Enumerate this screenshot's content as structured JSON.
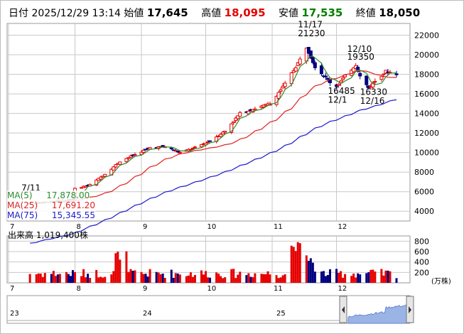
{
  "header": {
    "date_label": "日付",
    "datetime": "2025/12/29 13:14",
    "open_label": "始値",
    "open": "17,645",
    "high_label": "高値",
    "high": "18,095",
    "low_label": "安値",
    "low": "17,535",
    "close_label": "終値",
    "close": "18,050"
  },
  "ma_legend": [
    {
      "label": "MA(5)",
      "value": "17,878.00",
      "color": "#2e8b2e"
    },
    {
      "label": "MA(25)",
      "value": "17,691.20",
      "color": "#e02020"
    },
    {
      "label": "MA(75)",
      "value": "15,345.55",
      "color": "#1a1acc"
    }
  ],
  "volume_label": "出来高",
  "volume_value": "1,019,400株",
  "volume_unit": "(万株)",
  "colors": {
    "up": "#e60000",
    "down": "#000080",
    "ma5": "#2e8b2e",
    "ma25": "#e02020",
    "ma75": "#1a1acc",
    "grid": "#c8c8c8",
    "nav_fill": "#9bb4e6"
  },
  "annotations": [
    {
      "label": "7/11",
      "x": "2025-07-11",
      "y": 6100
    },
    {
      "label": "11/17",
      "x": "2025-11-17",
      "y": 22800
    },
    {
      "label": "21230",
      "x": "2025-11-17",
      "y": 21900
    },
    {
      "label": "12/10",
      "x": "2025-12-10",
      "y": 20300
    },
    {
      "label": "19350",
      "x": "2025-12-10",
      "y": 19500
    },
    {
      "label": "16485",
      "x": "2025-12-01",
      "y": 16000
    },
    {
      "label": "12/1",
      "x": "2025-12-01",
      "y": 15100
    },
    {
      "label": "16330",
      "x": "2025-12-16",
      "y": 15900
    },
    {
      "label": "12/16",
      "x": "2025-12-16",
      "y": 15000
    }
  ],
  "chart_data": [
    {
      "type": "candlestick",
      "title": "",
      "x_tick_labels": [
        "7",
        "8",
        "9",
        "10",
        "11",
        "12"
      ],
      "y_ticks": [
        4000,
        6000,
        8000,
        10000,
        12000,
        14000,
        16000,
        18000,
        20000,
        22000
      ],
      "ylim": [
        3000,
        23200
      ],
      "grid": true,
      "legend_position": "top-left",
      "series": [
        {
          "name": "MA(5)",
          "values_approx": "follows close"
        },
        {
          "name": "MA(25)",
          "values_approx": "follows close"
        },
        {
          "name": "MA(75)",
          "values_approx": "follows close"
        }
      ],
      "x_dates_start": "2025-07-11",
      "close_keypoints": [
        [
          "2025-07-11",
          4800
        ],
        [
          "2025-07-31",
          5200
        ],
        [
          "2025-08-01",
          6300
        ],
        [
          "2025-08-08",
          6700
        ],
        [
          "2025-08-15",
          7800
        ],
        [
          "2025-08-22",
          9100
        ],
        [
          "2025-08-29",
          9800
        ],
        [
          "2025-09-05",
          10500
        ],
        [
          "2025-09-12",
          10600
        ],
        [
          "2025-09-19",
          10000
        ],
        [
          "2025-09-26",
          10500
        ],
        [
          "2025-10-03",
          11200
        ],
        [
          "2025-10-10",
          12200
        ],
        [
          "2025-10-17",
          14000
        ],
        [
          "2025-10-24",
          14500
        ],
        [
          "2025-10-31",
          15000
        ],
        [
          "2025-11-07",
          17000
        ],
        [
          "2025-11-14",
          19500
        ],
        [
          "2025-11-17",
          20800
        ],
        [
          "2025-11-21",
          18800
        ],
        [
          "2025-11-28",
          17200
        ],
        [
          "2025-12-01",
          16800
        ],
        [
          "2025-12-05",
          17800
        ],
        [
          "2025-12-10",
          19000
        ],
        [
          "2025-12-12",
          17800
        ],
        [
          "2025-12-16",
          16600
        ],
        [
          "2025-12-19",
          17300
        ],
        [
          "2025-12-24",
          18300
        ],
        [
          "2025-12-29",
          18050
        ]
      ]
    },
    {
      "type": "bar",
      "title": "出来高",
      "y_ticks": [
        200,
        400,
        600,
        800
      ],
      "ylim": [
        0,
        900
      ],
      "unit": "(万株)",
      "x_tick_labels": [
        "7",
        "8",
        "9",
        "10",
        "11",
        "12"
      ]
    },
    {
      "type": "area",
      "x_tick_labels": [
        "23",
        "24",
        "25"
      ]
    }
  ]
}
